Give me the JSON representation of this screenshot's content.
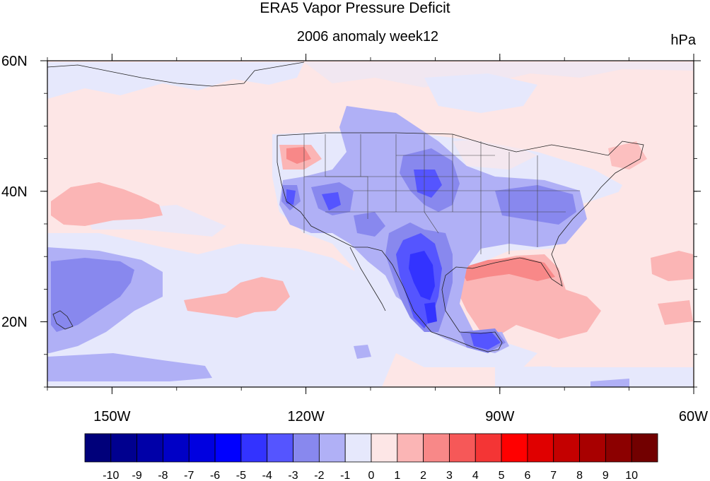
{
  "title": "ERA5 Vapor Pressure Deficit",
  "subtitle": "2006 anomaly week12",
  "units": "hPa",
  "map": {
    "lon_range": [
      -160,
      -60
    ],
    "lat_range": [
      10,
      60
    ],
    "x_ticks": [
      {
        "lon": -150,
        "label": "150W"
      },
      {
        "lon": -120,
        "label": "120W"
      },
      {
        "lon": -90,
        "label": "90W"
      },
      {
        "lon": -60,
        "label": "60W"
      }
    ],
    "y_ticks": [
      {
        "lat": 60,
        "label": "60N"
      },
      {
        "lat": 40,
        "label": "40N"
      },
      {
        "lat": 20,
        "label": "20N"
      }
    ]
  },
  "colorbar": {
    "labels": [
      "-10",
      "-9",
      "-8",
      "-7",
      "-6",
      "-5",
      "-4",
      "-3",
      "-2",
      "-1",
      "0",
      "1",
      "2",
      "3",
      "4",
      "5",
      "6",
      "7",
      "8",
      "9",
      "10"
    ],
    "colors": [
      "#00007a",
      "#00008f",
      "#0000a8",
      "#0000c6",
      "#0000e0",
      "#0000ff",
      "#3333ff",
      "#5555ff",
      "#8888ee",
      "#b0b0f6",
      "#e6e8fc",
      "#fde6e6",
      "#fbb5b5",
      "#f88888",
      "#f65858",
      "#f43535",
      "#ff0000",
      "#e00000",
      "#c40000",
      "#a80000",
      "#8c0000",
      "#720000"
    ]
  },
  "colors": {
    "neutral_neg": "#e6e8fc",
    "neutral_pos": "#fde6e6"
  }
}
